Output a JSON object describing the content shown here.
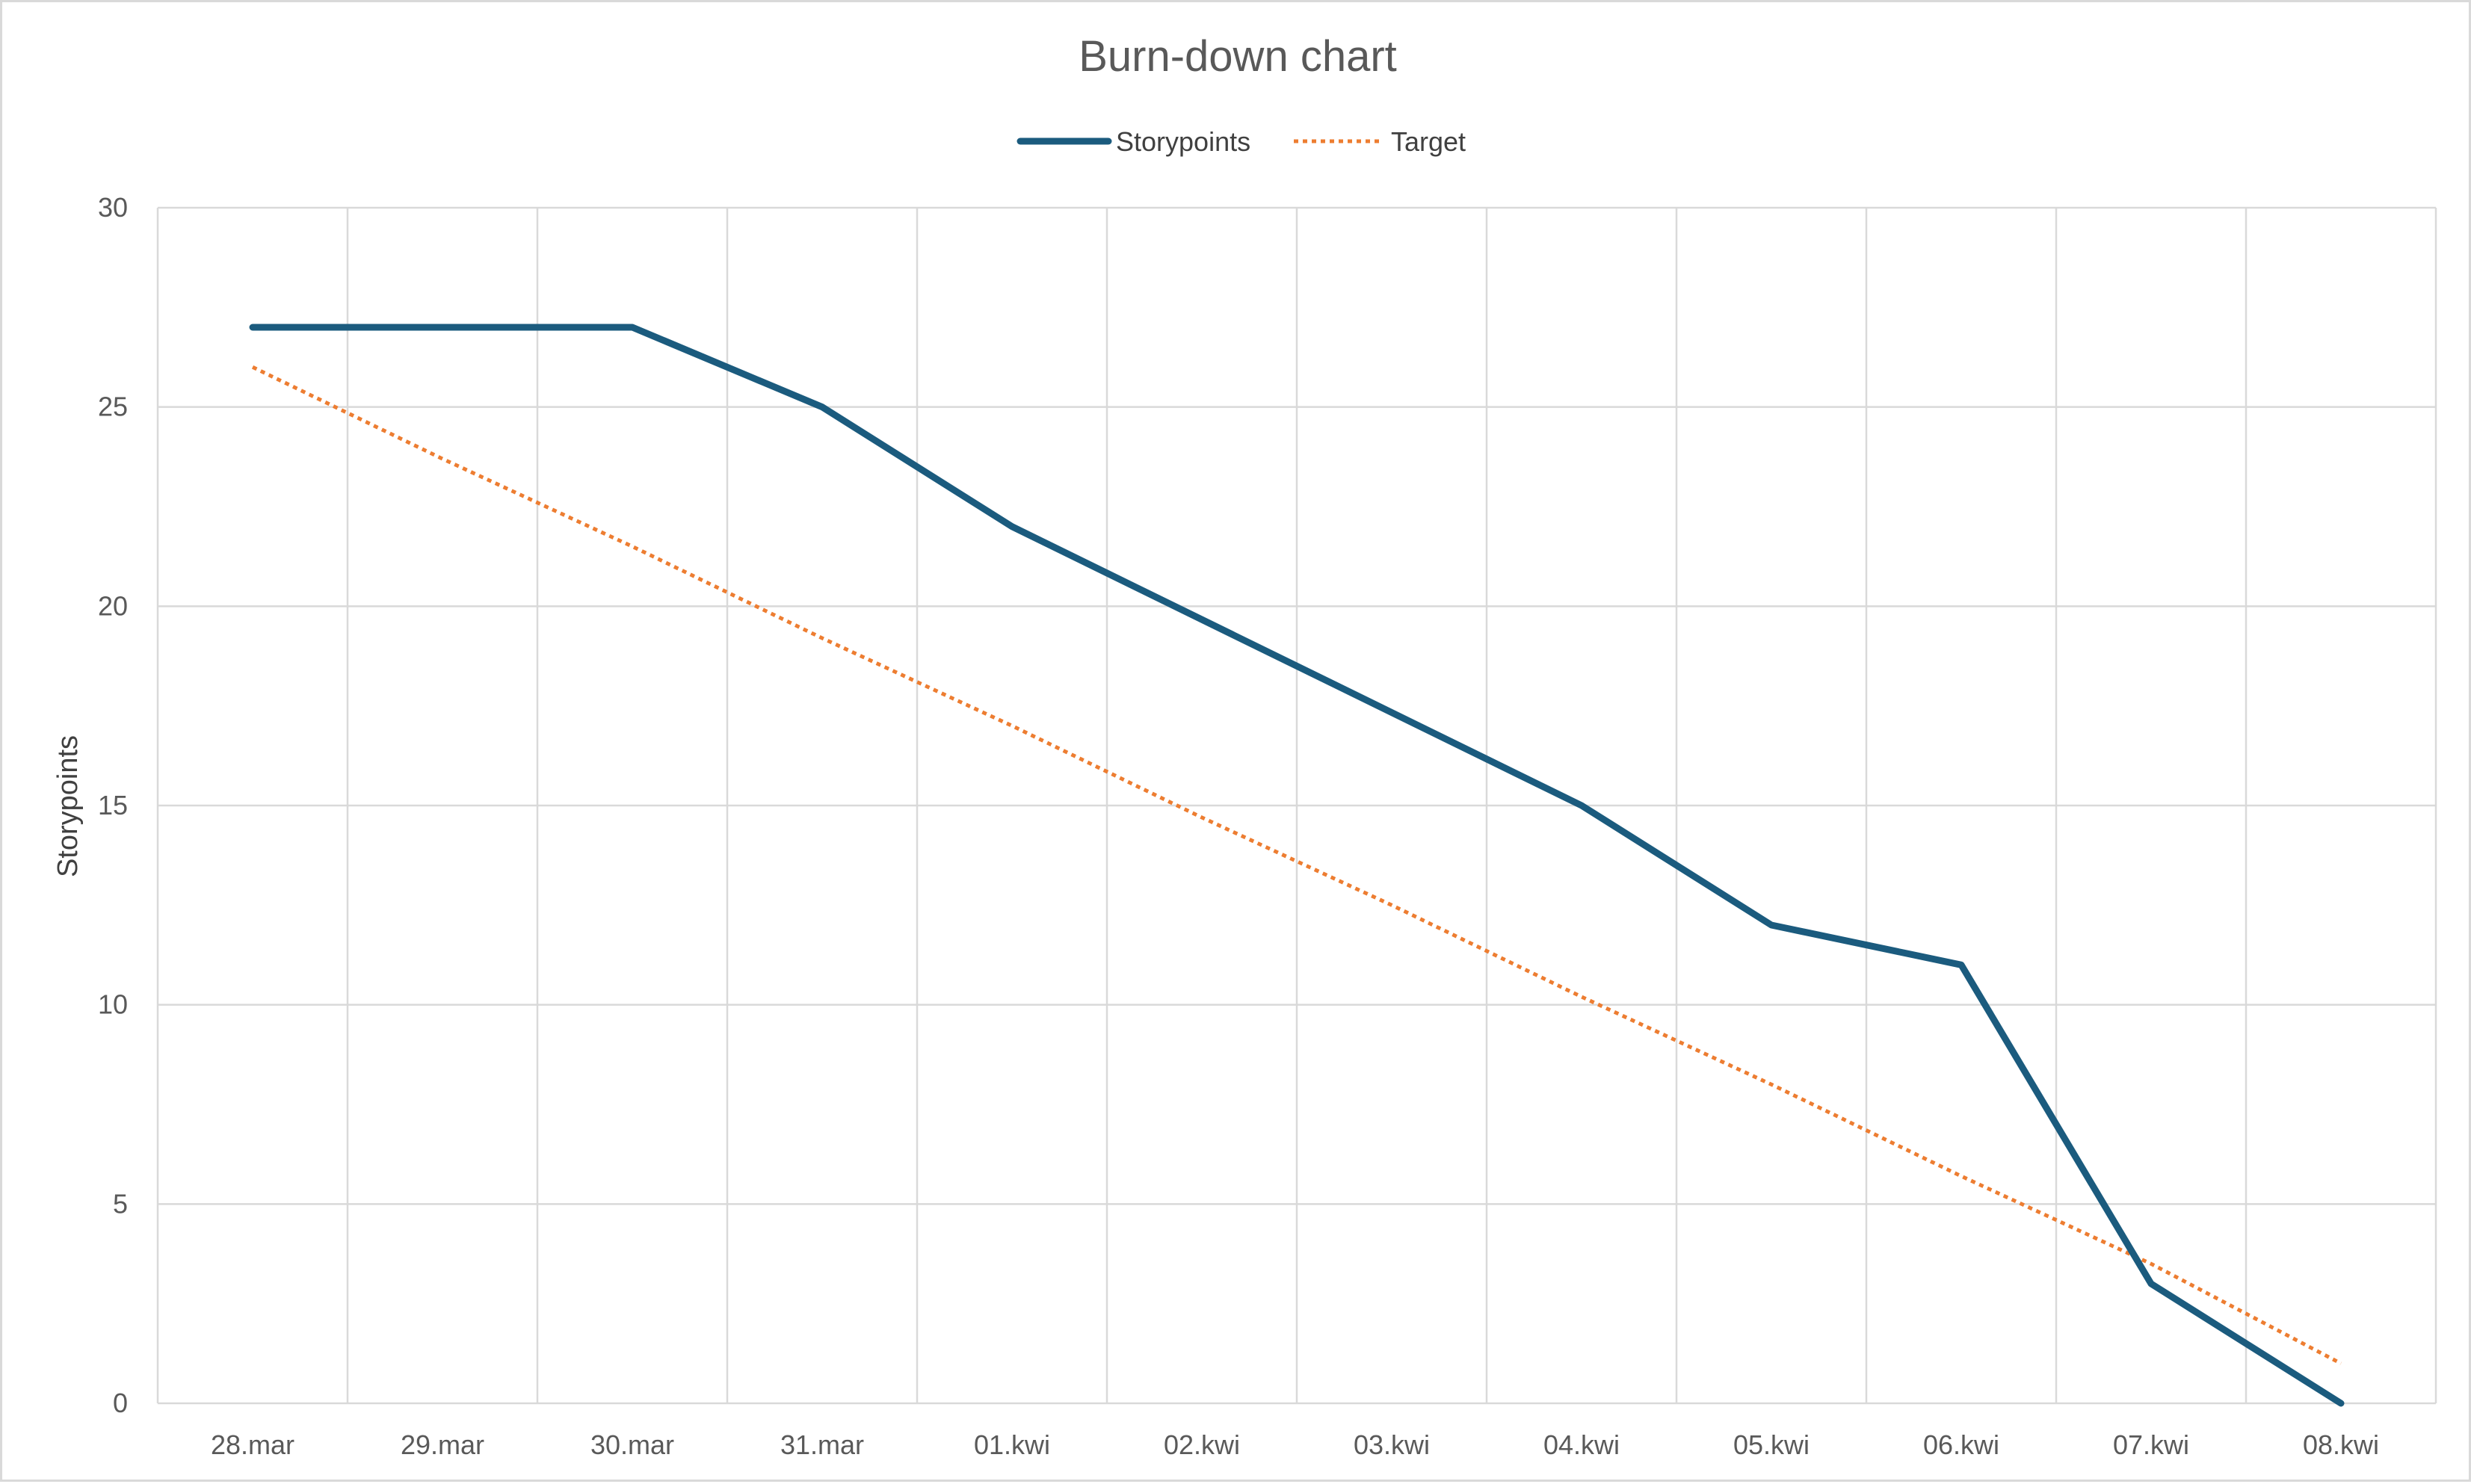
{
  "chart_data": {
    "type": "line",
    "title": "Burn-down chart",
    "xlabel": "",
    "ylabel": "Storypoints",
    "ylim": [
      0,
      30
    ],
    "yticks": [
      0,
      5,
      10,
      15,
      20,
      25,
      30
    ],
    "grid": true,
    "legend_position": "top-center",
    "categories": [
      "28.mar",
      "29.mar",
      "30.mar",
      "31.mar",
      "01.kwi",
      "02.kwi",
      "03.kwi",
      "04.kwi",
      "05.kwi",
      "06.kwi",
      "07.kwi",
      "08.kwi"
    ],
    "series": [
      {
        "name": "Storypoints",
        "color": "#1b5b7e",
        "style": "solid",
        "values": [
          27,
          27,
          27,
          25,
          22,
          null,
          null,
          15,
          12,
          11,
          3,
          0
        ]
      },
      {
        "name": "Target",
        "color": "#ed7d31",
        "style": "dotted",
        "values": [
          26,
          23.7,
          21.5,
          19.2,
          17,
          14.7,
          12.5,
          10.2,
          8,
          5.7,
          3.5,
          1
        ]
      }
    ]
  }
}
